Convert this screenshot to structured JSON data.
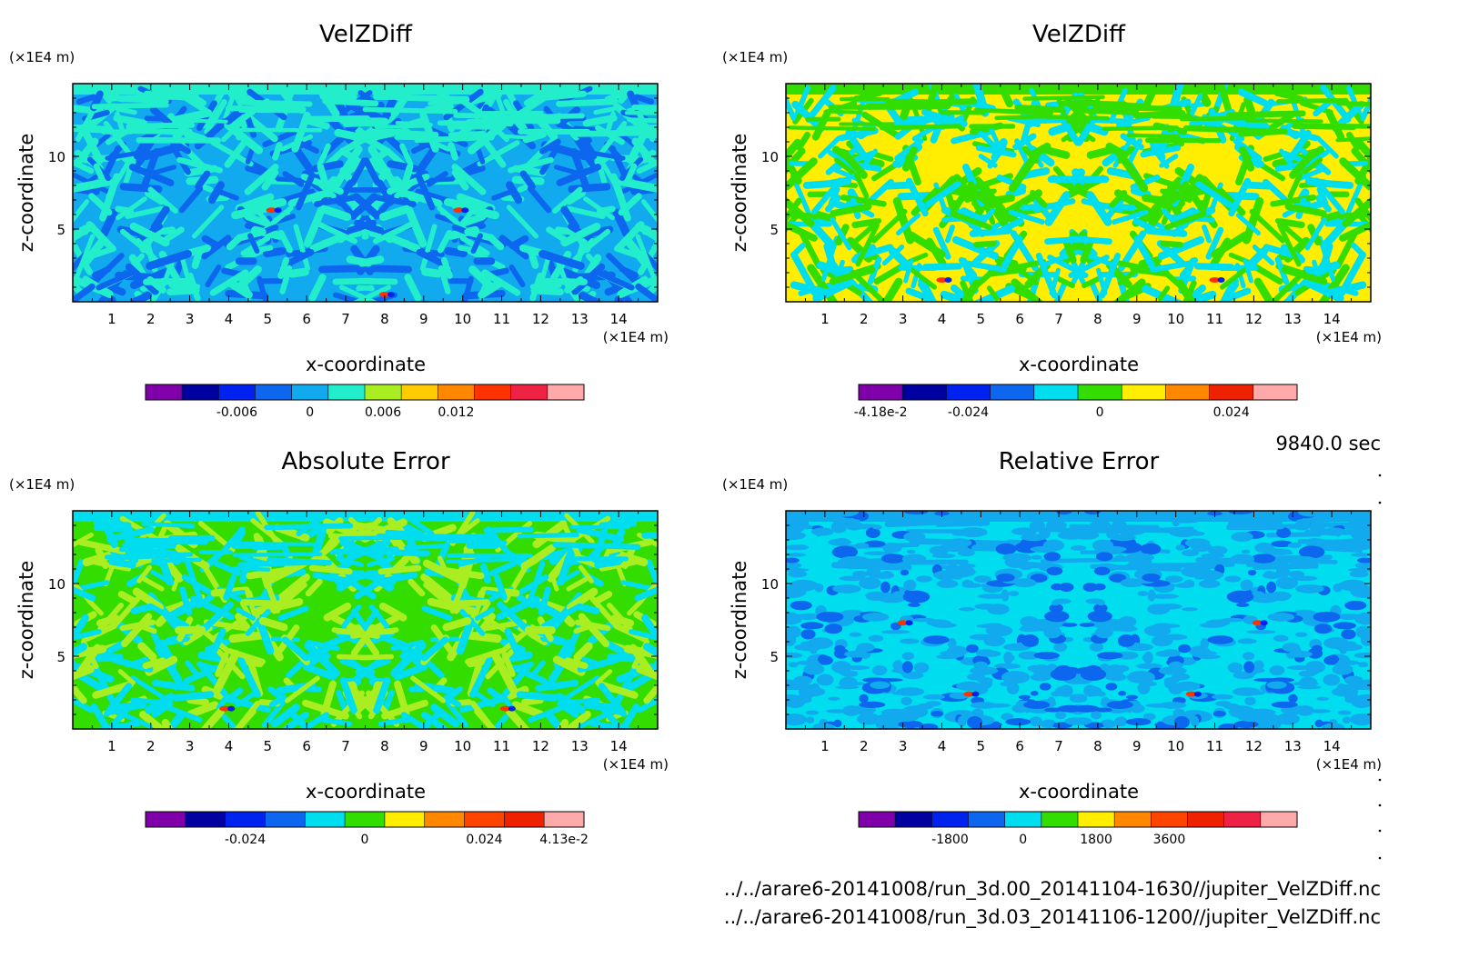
{
  "time_label": "9840.0 sec",
  "source_files": [
    "../../arare6-20141008/run_3d.00_20141104-1630//jupiter_VelZDiff.nc",
    "../../arare6-20141008/run_3d.03_20141106-1200//jupiter_VelZDiff.nc"
  ],
  "chart_data": [
    {
      "type": "heatmap",
      "title": "VelZDiff",
      "xlabel": "x-coordinate",
      "ylabel": "z-coordinate",
      "x_unit": "(×1E4 m)",
      "y_unit": "(×1E4 m)",
      "xlim": [
        0,
        15
      ],
      "ylim": [
        0,
        15
      ],
      "x_ticks": [
        1,
        2,
        3,
        4,
        5,
        6,
        7,
        8,
        9,
        10,
        11,
        12,
        13,
        14
      ],
      "y_ticks": [
        5,
        10
      ],
      "colorbar": {
        "colors": [
          "#7f00a8",
          "#0000a0",
          "#0022ee",
          "#0d66ee",
          "#11aaee",
          "#22eecc",
          "#aaee22",
          "#ffcc00",
          "#ff8800",
          "#ff3300",
          "#ee2244",
          "#ffaaaa"
        ],
        "tick_labels": [
          "-0.006",
          "0",
          "0.006",
          "0.012"
        ],
        "tick_boundaries": [
          2,
          4,
          6,
          8
        ]
      },
      "palette": [
        "#11aaee",
        "#22eecc",
        "#0d66ee",
        "#aaee22",
        "#0022ee"
      ]
    },
    {
      "type": "heatmap",
      "title": "VelZDiff",
      "xlabel": "x-coordinate",
      "ylabel": "z-coordinate",
      "x_unit": "(×1E4 m)",
      "y_unit": "(×1E4 m)",
      "xlim": [
        0,
        15
      ],
      "ylim": [
        0,
        15
      ],
      "x_ticks": [
        1,
        2,
        3,
        4,
        5,
        6,
        7,
        8,
        9,
        10,
        11,
        12,
        13,
        14
      ],
      "y_ticks": [
        5,
        10
      ],
      "colorbar": {
        "colors": [
          "#7f00a8",
          "#0000a0",
          "#0022ee",
          "#0d66ee",
          "#00ddee",
          "#33dd00",
          "#ffee00",
          "#ff8800",
          "#ee2200",
          "#ffaaaa"
        ],
        "tick_labels": [
          "-4.18e-2",
          "-0.024",
          "0",
          "0.024"
        ],
        "tick_boundaries": [
          0,
          2,
          5,
          8
        ]
      },
      "palette": [
        "#ffee00",
        "#33dd00",
        "#00ddee",
        "#ff8800",
        "#0d66ee"
      ]
    },
    {
      "type": "heatmap",
      "title": "Absolute Error",
      "xlabel": "x-coordinate",
      "ylabel": "z-coordinate",
      "x_unit": "(×1E4 m)",
      "y_unit": "(×1E4 m)",
      "xlim": [
        0,
        15
      ],
      "ylim": [
        0,
        15
      ],
      "x_ticks": [
        1,
        2,
        3,
        4,
        5,
        6,
        7,
        8,
        9,
        10,
        11,
        12,
        13,
        14
      ],
      "y_ticks": [
        5,
        10
      ],
      "colorbar": {
        "colors": [
          "#7f00a8",
          "#0000a0",
          "#0022ee",
          "#0d66ee",
          "#00ddee",
          "#33dd00",
          "#ffee00",
          "#ff8800",
          "#ff4400",
          "#ee2200",
          "#ffaaaa"
        ],
        "tick_labels": [
          "-0.024",
          "0",
          "0.024",
          "4.13e-2"
        ],
        "tick_boundaries": [
          2,
          5,
          8,
          10
        ]
      },
      "palette": [
        "#33dd00",
        "#00ddee",
        "#aaee22",
        "#ffee00",
        "#0d66ee"
      ]
    },
    {
      "type": "heatmap",
      "title": "Relative Error",
      "xlabel": "x-coordinate",
      "ylabel": "z-coordinate",
      "x_unit": "(×1E4 m)",
      "y_unit": "(×1E4 m)",
      "xlim": [
        0,
        15
      ],
      "ylim": [
        0,
        15
      ],
      "x_ticks": [
        1,
        2,
        3,
        4,
        5,
        6,
        7,
        8,
        9,
        10,
        11,
        12,
        13,
        14
      ],
      "y_ticks": [
        5,
        10
      ],
      "colorbar": {
        "colors": [
          "#7f00a8",
          "#0000a0",
          "#0022ee",
          "#0d66ee",
          "#00ddee",
          "#33dd00",
          "#ffee00",
          "#ff8800",
          "#ff4400",
          "#ee2200",
          "#ee2244",
          "#ffaaaa"
        ],
        "tick_labels": [
          "-1800",
          "0",
          "1800",
          "3600"
        ],
        "tick_boundaries": [
          2,
          4,
          6,
          8
        ]
      },
      "palette": [
        "#00ddee",
        "#11aaee",
        "#0d66ee"
      ]
    }
  ]
}
